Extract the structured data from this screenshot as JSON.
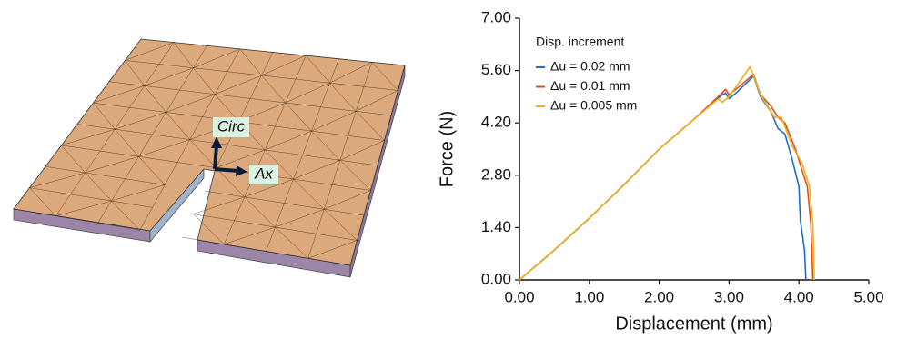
{
  "chart_data": {
    "type": "line",
    "annotations": [
      "Circ",
      "Ax"
    ],
    "xlabel": "Displacement (mm)",
    "ylabel": "Force (N)",
    "xlim": [
      0,
      5
    ],
    "ylim": [
      0,
      7
    ],
    "xticks": [
      {
        "value": 0,
        "label": "0.00"
      },
      {
        "value": 1,
        "label": "1.00"
      },
      {
        "value": 2,
        "label": "2.00"
      },
      {
        "value": 3,
        "label": "3.00"
      },
      {
        "value": 4,
        "label": "4.00"
      },
      {
        "value": 5,
        "label": "5.00"
      }
    ],
    "yticks": [
      {
        "value": 0,
        "label": "0.00"
      },
      {
        "value": 1.4,
        "label": "1.40"
      },
      {
        "value": 2.8,
        "label": "2.80"
      },
      {
        "value": 4.2,
        "label": "4.20"
      },
      {
        "value": 5.6,
        "label": "5.60"
      },
      {
        "value": 7,
        "label": "7.00"
      }
    ],
    "legend_title": "Disp. increment",
    "legend_position": "upper left",
    "series": [
      {
        "name": "Δu = 0.02 mm",
        "color": "#1a6fc4",
        "x": [
          0,
          0.5,
          1,
          1.5,
          2,
          2.5,
          2.9,
          2.95,
          3.0,
          3.1,
          3.35,
          3.45,
          3.6,
          3.7,
          3.8,
          3.9,
          4.0,
          4.02,
          4.08,
          4.1
        ],
        "values": [
          0,
          0.8,
          1.65,
          2.55,
          3.5,
          4.3,
          4.95,
          5.0,
          4.85,
          5.0,
          5.45,
          4.9,
          4.5,
          4.05,
          3.9,
          3.25,
          2.5,
          1.6,
          0.8,
          0
        ]
      },
      {
        "name": "Δu = 0.01 mm",
        "color": "#d95319",
        "x": [
          0,
          0.5,
          1,
          1.5,
          2,
          2.5,
          2.9,
          2.95,
          3.0,
          3.1,
          3.35,
          3.45,
          3.6,
          3.7,
          3.8,
          3.95,
          4.05,
          4.12,
          4.17,
          4.2
        ],
        "values": [
          0,
          0.8,
          1.65,
          2.55,
          3.5,
          4.3,
          5.0,
          5.1,
          4.95,
          5.1,
          5.5,
          4.95,
          4.65,
          4.35,
          4.2,
          3.5,
          2.9,
          2.5,
          1.5,
          0
        ]
      },
      {
        "name": "Δu = 0.005 mm",
        "color": "#edb120",
        "x": [
          0,
          0.5,
          1,
          1.5,
          2,
          2.5,
          2.85,
          2.9,
          3.0,
          3.3,
          3.45,
          3.6,
          3.65,
          3.75,
          3.9,
          4.05,
          4.15,
          4.2,
          4.22
        ],
        "values": [
          0,
          0.8,
          1.65,
          2.55,
          3.5,
          4.3,
          4.85,
          4.75,
          4.9,
          5.7,
          4.95,
          4.5,
          4.35,
          4.35,
          3.6,
          3.1,
          2.5,
          1.5,
          0
        ]
      }
    ]
  }
}
